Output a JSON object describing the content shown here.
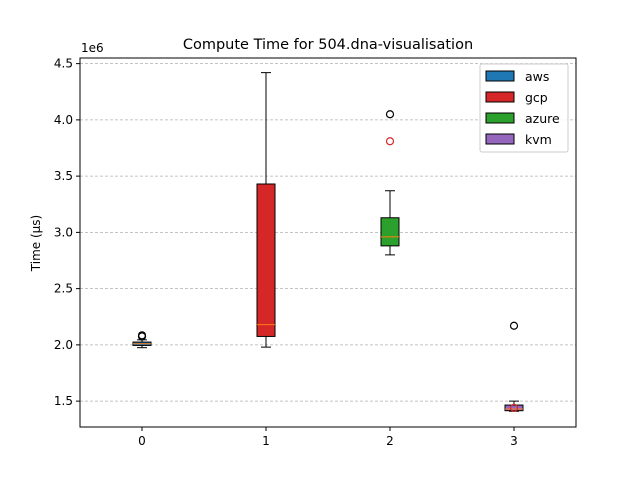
{
  "chart_data": {
    "type": "box",
    "title": "Compute Time for 504.dna-visualisation",
    "xlabel": "",
    "ylabel": "Time (µs)",
    "y_multiplier_label": "1e6",
    "y_multiplier": 1000000,
    "ylim": [
      1.27,
      4.55
    ],
    "y_ticks": [
      1.5,
      2.0,
      2.5,
      3.0,
      3.5,
      4.0,
      4.5
    ],
    "y_tick_labels": [
      "1.5",
      "2.0",
      "2.5",
      "3.0",
      "3.5",
      "4.0",
      "4.5"
    ],
    "x_tick_labels": [
      "0",
      "1",
      "2",
      "3"
    ],
    "grid": "y-dashed",
    "legend_position": "top-right",
    "series": [
      {
        "name": "aws",
        "color": "#1f77b4",
        "x": 0,
        "whisker_low": 1.975,
        "q1": 1.995,
        "median": 2.01,
        "q3": 2.025,
        "whisker_high": 2.045,
        "outliers": [
          2.075,
          2.085
        ],
        "outlier_color": "#000000"
      },
      {
        "name": "gcp",
        "color": "#d62728",
        "x": 0,
        "whisker_low": 1.98,
        "q1": 2.075,
        "median": 2.18,
        "q3": 3.43,
        "whisker_high": 4.42,
        "outliers": [
          2.52
        ],
        "outlier_color": "#d62728"
      },
      {
        "name": "azure",
        "color": "#2ca02c",
        "x": 0,
        "whisker_low": 2.8,
        "q1": 2.88,
        "median": 2.96,
        "q3": 3.13,
        "whisker_high": 3.37,
        "outliers": [
          4.05
        ],
        "outlier_color": "#000000"
      },
      {
        "name": "kvm",
        "color": "#9467bd",
        "x": 0,
        "whisker_low": 1.41,
        "q1": 1.415,
        "median": 1.43,
        "q3": 1.465,
        "whisker_high": 1.5,
        "outliers": [
          2.17
        ],
        "outlier_color": "#000000"
      }
    ],
    "extra_marks": [
      {
        "x": 1,
        "y": 3.33,
        "color": "#d62728"
      },
      {
        "x": 2,
        "y": 3.81,
        "color": "#d62728"
      },
      {
        "x": 3,
        "y": 1.44,
        "color": "#d62728"
      }
    ]
  }
}
